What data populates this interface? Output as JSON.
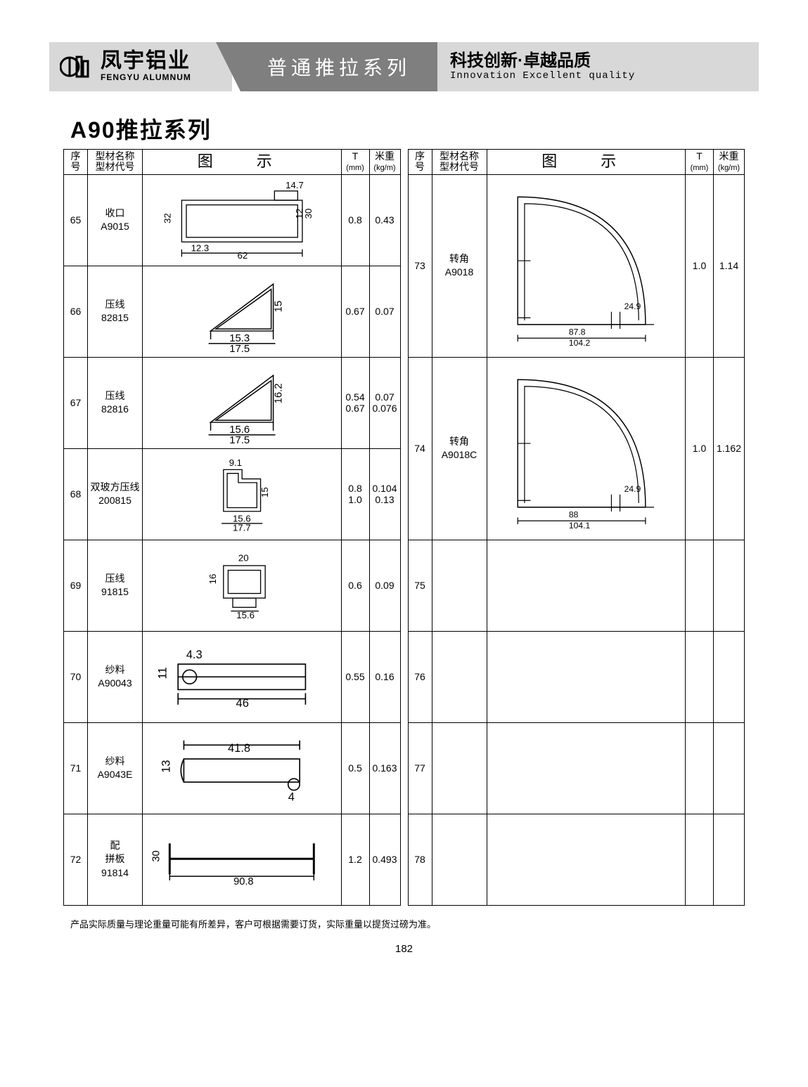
{
  "header": {
    "logo_cn": "凤宇铝业",
    "logo_en": "FENGYU ALUMNUM",
    "ribbon": "普通推拉系列",
    "slogan_cn": "科技创新·卓越品质",
    "slogan_en": "Innovation  Excellent  quality"
  },
  "section_title": "A90推拉系列",
  "columns": {
    "idx": "序\n号",
    "name_l1": "型材名称",
    "name_l2": "型材代号",
    "diagram": "图　示",
    "t_l1": "T",
    "t_l2": "(mm)",
    "w_l1": "米重",
    "w_l2": "(kg/m)"
  },
  "left_rows": [
    {
      "idx": "65",
      "name": "收口",
      "code": "A9015",
      "t": "0.8",
      "w": "0.43",
      "dims": {
        "a": "14.7",
        "b": "32",
        "c": "12",
        "d": "30",
        "e": "12.3",
        "f": "62"
      }
    },
    {
      "idx": "66",
      "name": "压线",
      "code": "82815",
      "t": "0.67",
      "w": "0.07",
      "dims": {
        "a": "15",
        "b": "15.3",
        "c": "17.5"
      }
    },
    {
      "idx": "67",
      "name": "压线",
      "code": "82816",
      "t": "0.54\n0.67",
      "w": "0.07\n0.076",
      "dims": {
        "a": "16.2",
        "b": "15.6",
        "c": "17.5"
      }
    },
    {
      "idx": "68",
      "name": "双玻方压线",
      "code": "200815",
      "t": "0.8\n1.0",
      "w": "0.104\n0.13",
      "dims": {
        "a": "9.1",
        "b": "15",
        "c": "15.6",
        "d": "17.7"
      }
    },
    {
      "idx": "69",
      "name": "压线",
      "code": "91815",
      "t": "0.6",
      "w": "0.09",
      "dims": {
        "a": "20",
        "b": "16",
        "c": "15.6"
      }
    },
    {
      "idx": "70",
      "name": "纱料",
      "code": "A90043",
      "t": "0.55",
      "w": "0.16",
      "dims": {
        "a": "4.3",
        "b": "11",
        "c": "46"
      }
    },
    {
      "idx": "71",
      "name": "纱料",
      "code": "A9043E",
      "t": "0.5",
      "w": "0.163",
      "dims": {
        "a": "41.8",
        "b": "13",
        "c": "4"
      }
    },
    {
      "idx": "72",
      "name": "配\n拼板",
      "code": "91814",
      "t": "1.2",
      "w": "0.493",
      "dims": {
        "a": "30",
        "b": "90.8"
      }
    }
  ],
  "right_rows": [
    {
      "idx": "73",
      "name": "转角",
      "code": "A9018",
      "t": "1.0",
      "w": "1.14",
      "span": 2,
      "dims": {
        "a": "24.9",
        "b": "87.8",
        "c": "104.2"
      }
    },
    {
      "idx": "74",
      "name": "转角",
      "code": "A9018C",
      "t": "1.0",
      "w": "1.162",
      "span": 2,
      "dims": {
        "a": "24.9",
        "b": "88",
        "c": "104.1"
      }
    },
    {
      "idx": "75",
      "name": "",
      "code": "",
      "t": "",
      "w": "",
      "span": 1
    },
    {
      "idx": "76",
      "name": "",
      "code": "",
      "t": "",
      "w": "",
      "span": 1
    },
    {
      "idx": "77",
      "name": "",
      "code": "",
      "t": "",
      "w": "",
      "span": 1
    },
    {
      "idx": "78",
      "name": "",
      "code": "",
      "t": "",
      "w": "",
      "span": 1
    }
  ],
  "footnote": "产品实际质量与理论重量可能有所差异，客户可根据需要订货，实际重量以提货过磅为准。",
  "page_number": "182",
  "colors": {
    "header_bg": "#d8d8d8",
    "ribbon_bg": "#7f7f7f",
    "border": "#000000",
    "text": "#000000"
  }
}
